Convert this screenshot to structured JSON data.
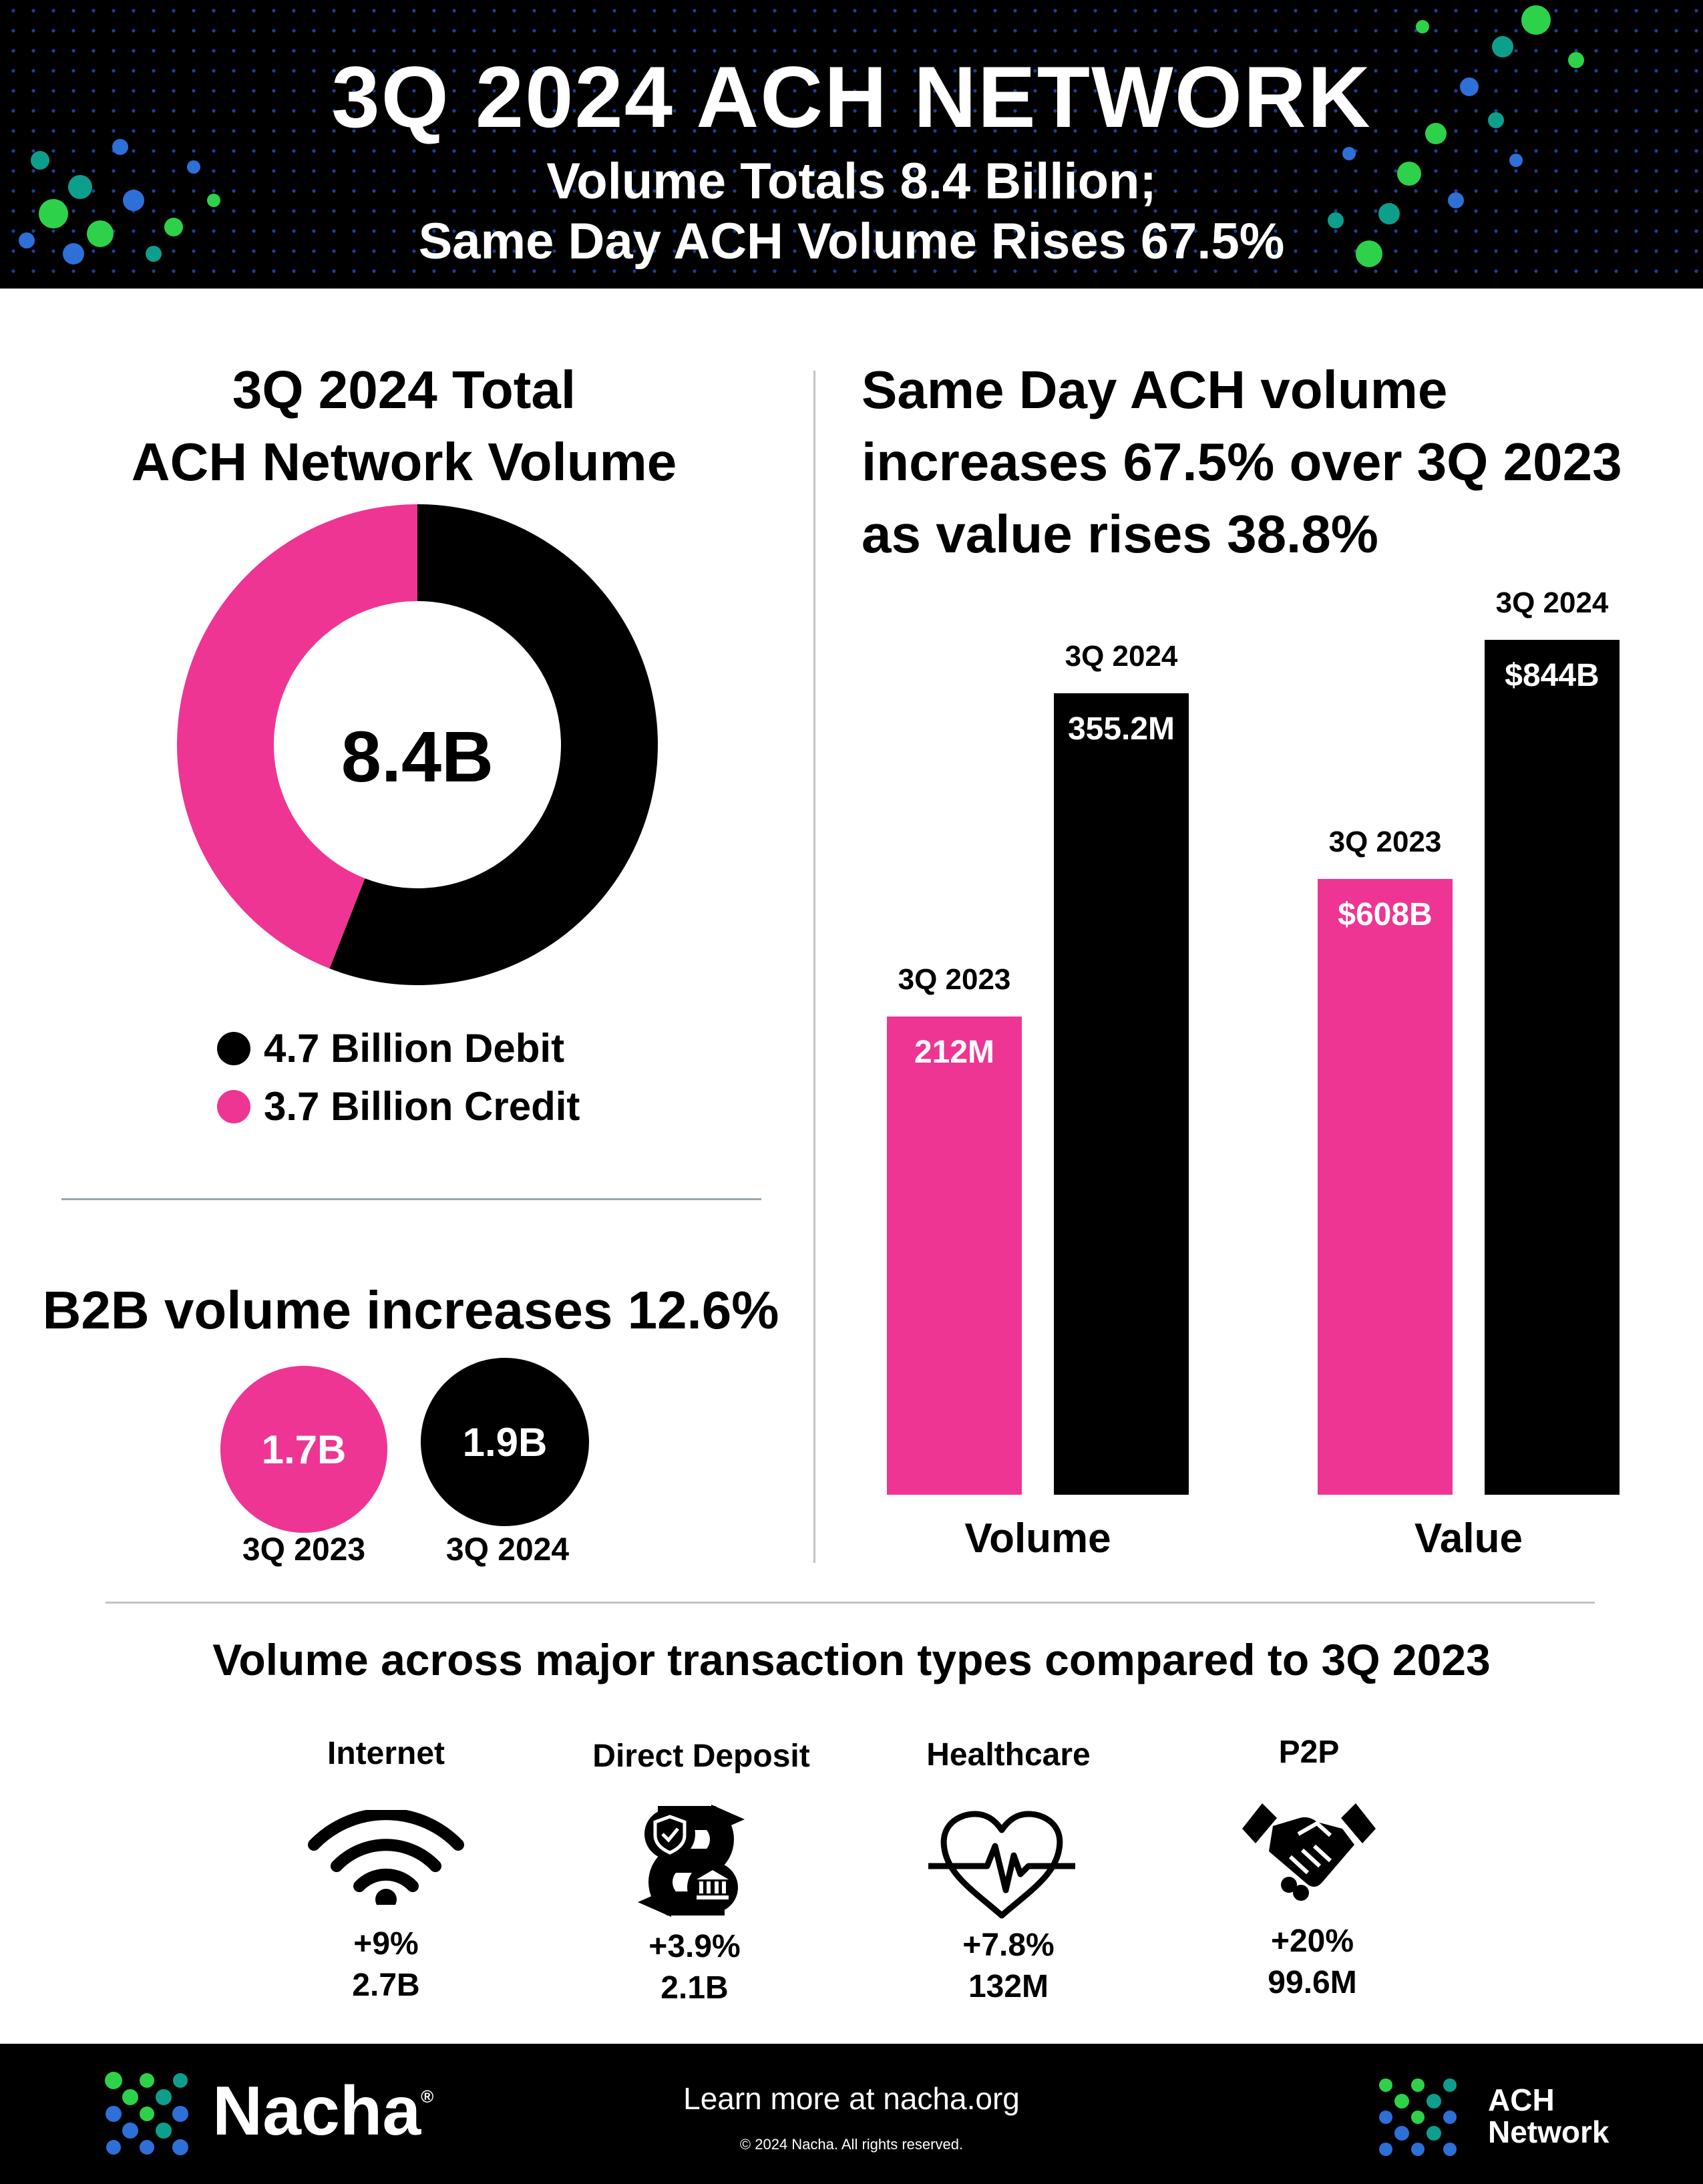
{
  "header": {
    "title": "3Q 2024 ACH NETWORK",
    "subtitle_line1": "Volume Totals 8.4 Billion;",
    "subtitle_line2": "Same Day ACH Volume Rises 67.5%"
  },
  "colors": {
    "pink": "#ee3593",
    "black": "#000000",
    "green": "#2dd24a",
    "teal": "#0e9e8c",
    "blue": "#2e6fd8"
  },
  "total_volume": {
    "title_line1": "3Q 2024 Total",
    "title_line2": "ACH Network Volume",
    "center_label": "8.4B",
    "legend": [
      {
        "label": "4.7 Billion Debit",
        "color": "#000000"
      },
      {
        "label": "3.7 Billion Credit",
        "color": "#ee3593"
      }
    ]
  },
  "b2b": {
    "title": "B2B volume increases 12.6%",
    "circles": [
      {
        "value": "1.7B",
        "label": "3Q 2023",
        "color": "#ee3593"
      },
      {
        "value": "1.9B",
        "label": "3Q 2024",
        "color": "#000000"
      }
    ]
  },
  "same_day": {
    "title_line1": "Same Day ACH volume",
    "title_line2": "increases 67.5% over 3Q 2023",
    "title_line3": "as value rises 38.8%"
  },
  "chart_data": [
    {
      "type": "pie",
      "title": "3Q 2024 Total ACH Network Volume",
      "categories": [
        "Debit",
        "Credit"
      ],
      "values": [
        4.7,
        3.7
      ],
      "unit": "Billion",
      "center_label": "8.4B"
    },
    {
      "type": "bar",
      "title": "Same Day ACH volume increases 67.5% over 3Q 2023 as value rises 38.8%",
      "groups": [
        {
          "name": "Volume",
          "bars": [
            {
              "period": "3Q 2023",
              "value": 212,
              "label": "212M",
              "color": "#ee3593"
            },
            {
              "period": "3Q 2024",
              "value": 355.2,
              "label": "355.2M",
              "color": "#000000"
            }
          ],
          "max": 355.2
        },
        {
          "name": "Value",
          "bars": [
            {
              "period": "3Q 2023",
              "value": 608,
              "label": "$608B",
              "color": "#ee3593"
            },
            {
              "period": "3Q 2024",
              "value": 844,
              "label": "$844B",
              "color": "#000000"
            }
          ],
          "max": 844
        }
      ]
    }
  ],
  "transaction_types": {
    "title": "Volume across major transaction types compared to 3Q 2023",
    "items": [
      {
        "label": "Internet",
        "icon": "wifi-icon",
        "change": "+9%",
        "volume": "2.7B"
      },
      {
        "label": "Direct Deposit",
        "icon": "direct-deposit-icon",
        "change": "+3.9%",
        "volume": "2.1B"
      },
      {
        "label": "Healthcare",
        "icon": "heart-pulse-icon",
        "change": "+7.8%",
        "volume": "132M"
      },
      {
        "label": "P2P",
        "icon": "handshake-icon",
        "change": "+20%",
        "volume": "99.6M"
      }
    ]
  },
  "footer": {
    "brand": "Nacha",
    "registered_mark": "®",
    "learn_more": "Learn more at nacha.org",
    "copyright": "© 2024 Nacha. All rights reserved.",
    "network_line1": "ACH",
    "network_line2": "Network"
  }
}
